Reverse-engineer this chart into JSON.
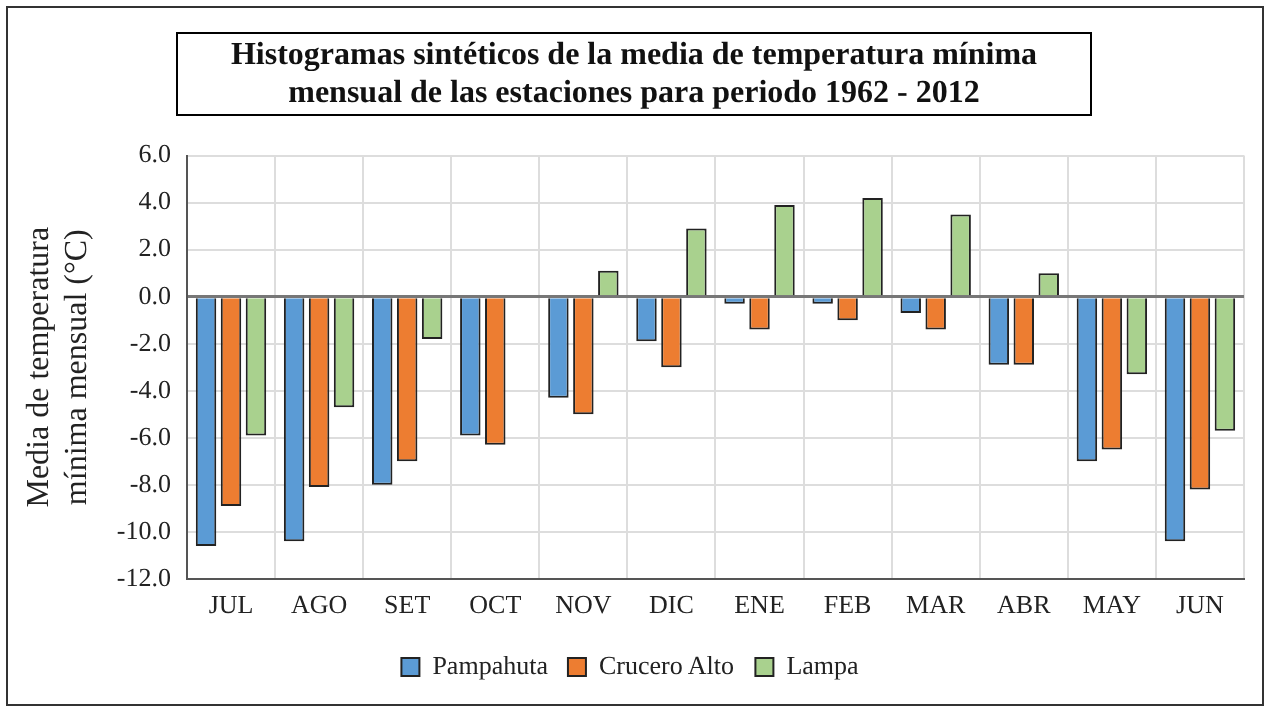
{
  "chart_data": {
    "type": "bar",
    "title": "Histogramas sintéticos de la media de temperatura mínima\nmensual de las estaciones para periodo 1962 - 2012",
    "ylabel": "Media de temperatura\nmínima mensual (°C)",
    "categories": [
      "JUL",
      "AGO",
      "SET",
      "OCT",
      "NOV",
      "DIC",
      "ENE",
      "FEB",
      "MAR",
      "ABR",
      "MAY",
      "JUN"
    ],
    "series": [
      {
        "name": "Pampahuta",
        "color": "#5b9bd5",
        "values": [
          -10.6,
          -10.4,
          -8.0,
          -5.9,
          -4.3,
          -1.9,
          -0.3,
          -0.3,
          -0.7,
          -2.9,
          -7.0,
          -10.4
        ]
      },
      {
        "name": "Crucero Alto",
        "color": "#ed7d31",
        "values": [
          -8.9,
          -8.1,
          -7.0,
          -6.3,
          -5.0,
          -3.0,
          -1.4,
          -1.0,
          -1.4,
          -2.9,
          -6.5,
          -8.2
        ]
      },
      {
        "name": "Lampa",
        "color": "#a9d18e",
        "values": [
          -5.9,
          -4.7,
          -1.8,
          null,
          1.1,
          2.9,
          3.9,
          4.2,
          3.5,
          1.0,
          -3.3,
          -5.7
        ]
      }
    ],
    "ylim": [
      -12,
      6
    ],
    "yticks": [
      {
        "value": 6,
        "label": "6.0"
      },
      {
        "value": 4,
        "label": "4.0"
      },
      {
        "value": 2,
        "label": "2.0"
      },
      {
        "value": 0,
        "label": "0.0"
      },
      {
        "value": -2,
        "label": "-2.0"
      },
      {
        "value": -4,
        "label": "-4.0"
      },
      {
        "value": -6,
        "label": "-6.0"
      },
      {
        "value": -8,
        "label": "-8.0"
      },
      {
        "value": -10,
        "label": "-10.0"
      },
      {
        "value": -12,
        "label": "-12.0"
      }
    ],
    "grid": true,
    "legend": "bottom"
  }
}
